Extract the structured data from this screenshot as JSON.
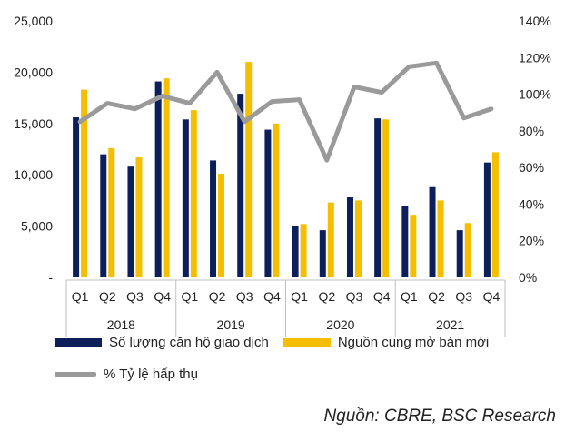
{
  "chart_data": {
    "type": "bar",
    "title": "",
    "quarters": [
      "Q1",
      "Q2",
      "Q3",
      "Q4",
      "Q1",
      "Q2",
      "Q3",
      "Q4",
      "Q1",
      "Q2",
      "Q3",
      "Q4",
      "Q1",
      "Q2",
      "Q3",
      "Q4"
    ],
    "years": [
      "2018",
      "2019",
      "2020",
      "2021"
    ],
    "left_axis": {
      "ticks": [
        "-",
        "5,000",
        "10,000",
        "15,000",
        "20,000",
        "25,000"
      ],
      "ylim": [
        0,
        25000
      ]
    },
    "right_axis": {
      "ticks": [
        "0%",
        "20%",
        "40%",
        "60%",
        "80%",
        "100%",
        "120%",
        "140%"
      ],
      "ylim": [
        0,
        140
      ]
    },
    "series": [
      {
        "name": "Số lượng căn hộ giao dịch",
        "type": "bar",
        "axis": "left",
        "values": [
          15600,
          12000,
          10800,
          19100,
          15400,
          11400,
          17900,
          14400,
          5000,
          4600,
          7800,
          15500,
          7000,
          8800,
          4600,
          11200
        ]
      },
      {
        "name": "Nguồn cung mở bán mới",
        "type": "bar",
        "axis": "left",
        "values": [
          18300,
          12600,
          11700,
          19400,
          16300,
          10100,
          21000,
          15000,
          5200,
          7300,
          7500,
          15400,
          6100,
          7500,
          5300,
          12200
        ]
      },
      {
        "name": "% Tỷ lệ hấp thụ",
        "type": "line",
        "axis": "right",
        "values": [
          85,
          95,
          92,
          99,
          95,
          112,
          85,
          96,
          97,
          64,
          104,
          101,
          115,
          117,
          87,
          92
        ]
      }
    ],
    "grid": false,
    "legend": "bottom"
  },
  "colors": {
    "units_sold": "#0c1f5b",
    "new_supply": "#f6be00",
    "absorption": "#9a9a9a"
  },
  "legend": {
    "units_sold": "Số lượng căn hộ giao dịch",
    "new_supply": "Nguồn cung mở bán mới",
    "absorption": "% Tỷ lệ hấp thụ"
  },
  "source": "Nguồn: CBRE, BSC Research"
}
